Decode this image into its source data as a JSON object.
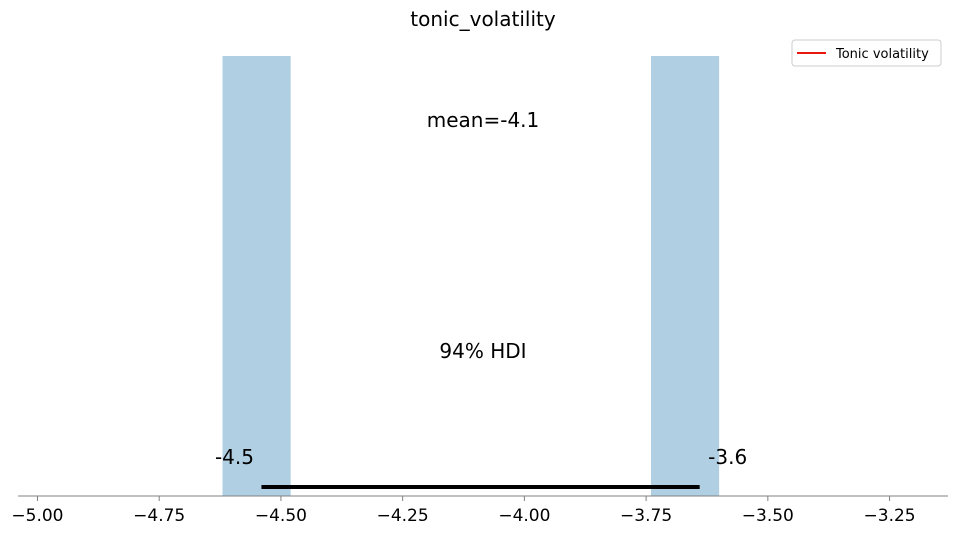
{
  "chart_data": {
    "type": "bar",
    "title": "tonic_volatility",
    "xlabel": "",
    "ylabel": "",
    "xlim": [
      -5.04,
      -3.13
    ],
    "ylim": [
      0,
      1
    ],
    "bars": [
      {
        "x_start": -4.62,
        "x_end": -4.48,
        "value": 1
      },
      {
        "x_start": -3.74,
        "x_end": -3.6,
        "value": 1
      }
    ],
    "bar_color": "#b0cfe3",
    "x_ticks": [
      -5.0,
      -4.75,
      -4.5,
      -4.25,
      -4.0,
      -3.75,
      -3.5,
      -3.25
    ],
    "x_tick_labels": [
      "−5.00",
      "−4.75",
      "−4.50",
      "−4.25",
      "−4.00",
      "−3.75",
      "−3.50",
      "−3.25"
    ],
    "mean_label": "mean=-4.1",
    "mean": -4.1,
    "hdi_label": "94% HDI",
    "hdi": [
      -4.54,
      -3.64
    ],
    "hdi_low_label": "-4.5",
    "hdi_high_label": "-3.6",
    "hdi_color": "#000000",
    "legend": {
      "position": "top-right",
      "entries": [
        {
          "label": "Tonic volatility",
          "color": "#e8160c"
        }
      ]
    },
    "grid": false
  }
}
